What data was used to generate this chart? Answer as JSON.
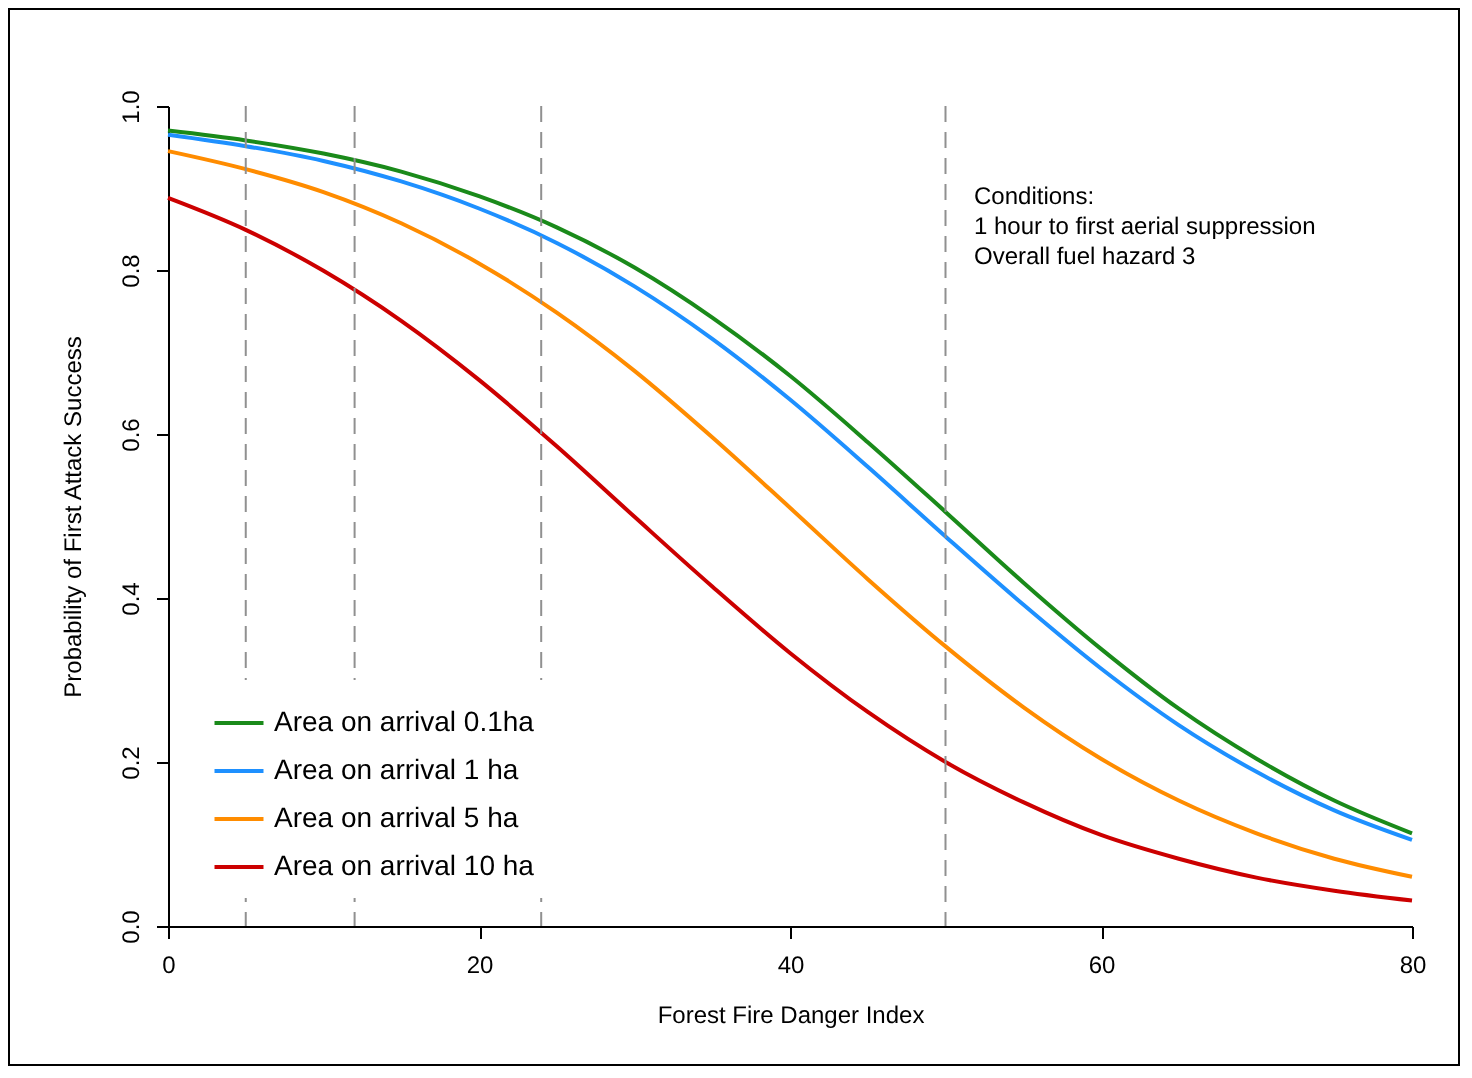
{
  "chart_data": {
    "type": "line",
    "xlabel": "Forest Fire Danger Index",
    "ylabel": "Probability of First Attack Success",
    "x": [
      0,
      5,
      10,
      15,
      20,
      25,
      30,
      35,
      40,
      45,
      50,
      55,
      60,
      65,
      70,
      75,
      80
    ],
    "series": [
      {
        "name": "Area on arrival 0.1ha",
        "color": "#1a8a1a",
        "values": [
          0.97,
          0.958,
          0.942,
          0.92,
          0.89,
          0.852,
          0.803,
          0.742,
          0.671,
          0.59,
          0.505,
          0.419,
          0.338,
          0.265,
          0.204,
          0.153,
          0.113
        ]
      },
      {
        "name": "Area on arrival 1 ha",
        "color": "#1e90ff",
        "values": [
          0.965,
          0.951,
          0.933,
          0.908,
          0.875,
          0.833,
          0.78,
          0.716,
          0.642,
          0.56,
          0.475,
          0.392,
          0.314,
          0.245,
          0.188,
          0.141,
          0.105
        ]
      },
      {
        "name": "Area on arrival 5 ha",
        "color": "#ff8c00",
        "values": [
          0.945,
          0.923,
          0.895,
          0.857,
          0.808,
          0.748,
          0.677,
          0.596,
          0.51,
          0.423,
          0.341,
          0.267,
          0.204,
          0.153,
          0.113,
          0.082,
          0.06
        ]
      },
      {
        "name": "Area on arrival 10 ha",
        "color": "#cc0000",
        "values": [
          0.888,
          0.849,
          0.799,
          0.738,
          0.666,
          0.585,
          0.499,
          0.414,
          0.333,
          0.261,
          0.2,
          0.151,
          0.111,
          0.082,
          0.059,
          0.043,
          0.031
        ]
      }
    ],
    "xlim": [
      0,
      80
    ],
    "xticks": [
      0,
      20,
      40,
      60,
      80
    ],
    "ylim": [
      0,
      1
    ],
    "yticks": [
      {
        "value": 0,
        "label": "0.0"
      },
      0.2,
      0.4,
      0.6,
      0.8,
      {
        "value": 1,
        "label": "1.0"
      }
    ],
    "ref_lines": [
      {
        "axis": "x",
        "value": 5,
        "color": "#909090",
        "line_style": "dashed"
      },
      {
        "axis": "x",
        "value": 12,
        "color": "#909090",
        "line_style": "dashed"
      },
      {
        "axis": "x",
        "value": 24,
        "color": "#909090",
        "line_style": "dashed"
      },
      {
        "axis": "x",
        "value": 50,
        "color": "#909090",
        "line_style": "dashed"
      }
    ],
    "annotations": [
      "Conditions:",
      "1 hour to first aerial suppression",
      "Overall fuel hazard 3"
    ],
    "legend": "bottom left",
    "grid": false,
    "line_style": "solid",
    "marker": "none"
  }
}
